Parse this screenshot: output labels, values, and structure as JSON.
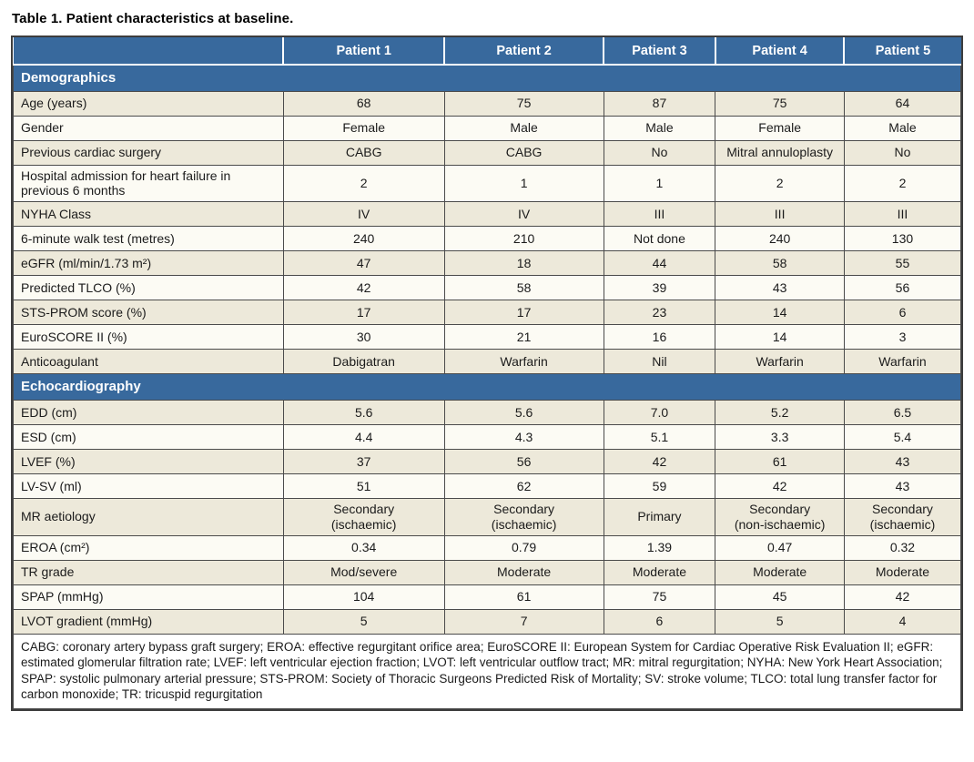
{
  "title": "Table 1. Patient characteristics at baseline.",
  "table": {
    "columns": [
      "",
      "Patient 1",
      "Patient 2",
      "Patient 3",
      "Patient 4",
      "Patient 5"
    ],
    "sections": [
      {
        "header": "Demographics",
        "rows": [
          {
            "label": "Age (years)",
            "values": [
              "68",
              "75",
              "87",
              "75",
              "64"
            ]
          },
          {
            "label": "Gender",
            "values": [
              "Female",
              "Male",
              "Male",
              "Female",
              "Male"
            ]
          },
          {
            "label": "Previous cardiac surgery",
            "values": [
              "CABG",
              "CABG",
              "No",
              "Mitral annuloplasty",
              "No"
            ]
          },
          {
            "label": "Hospital admission for heart failure in previous 6 months",
            "values": [
              "2",
              "1",
              "1",
              "2",
              "2"
            ]
          },
          {
            "label": "NYHA Class",
            "values": [
              "IV",
              "IV",
              "III",
              "III",
              "III"
            ]
          },
          {
            "label": "6-minute walk test (metres)",
            "values": [
              "240",
              "210",
              "Not done",
              "240",
              "130"
            ]
          },
          {
            "label": "eGFR (ml/min/1.73 m²)",
            "values": [
              "47",
              "18",
              "44",
              "58",
              "55"
            ]
          },
          {
            "label": "Predicted TLCO (%)",
            "values": [
              "42",
              "58",
              "39",
              "43",
              "56"
            ]
          },
          {
            "label": "STS-PROM score (%)",
            "values": [
              "17",
              "17",
              "23",
              "14",
              "6"
            ]
          },
          {
            "label": "EuroSCORE II (%)",
            "values": [
              "30",
              "21",
              "16",
              "14",
              "3"
            ]
          },
          {
            "label": "Anticoagulant",
            "values": [
              "Dabigatran",
              "Warfarin",
              "Nil",
              "Warfarin",
              "Warfarin"
            ]
          }
        ]
      },
      {
        "header": "Echocardiography",
        "rows": [
          {
            "label": "EDD (cm)",
            "values": [
              "5.6",
              "5.6",
              "7.0",
              "5.2",
              "6.5"
            ]
          },
          {
            "label": "ESD (cm)",
            "values": [
              "4.4",
              "4.3",
              "5.1",
              "3.3",
              "5.4"
            ]
          },
          {
            "label": "LVEF (%)",
            "values": [
              "37",
              "56",
              "42",
              "61",
              "43"
            ]
          },
          {
            "label": "LV-SV (ml)",
            "values": [
              "51",
              "62",
              "59",
              "42",
              "43"
            ]
          },
          {
            "label": "MR aetiology",
            "values": [
              "Secondary\n(ischaemic)",
              "Secondary\n(ischaemic)",
              "Primary",
              "Secondary\n(non-ischaemic)",
              "Secondary\n(ischaemic)"
            ]
          },
          {
            "label": "EROA (cm²)",
            "values": [
              "0.34",
              "0.79",
              "1.39",
              "0.47",
              "0.32"
            ]
          },
          {
            "label": "TR grade",
            "values": [
              "Mod/severe",
              "Moderate",
              "Moderate",
              "Moderate",
              "Moderate"
            ]
          },
          {
            "label": "SPAP (mmHg)",
            "values": [
              "104",
              "61",
              "75",
              "45",
              "42"
            ]
          },
          {
            "label": "LVOT gradient (mmHg)",
            "values": [
              "5",
              "7",
              "6",
              "5",
              "4"
            ]
          }
        ]
      }
    ],
    "footnote": "CABG: coronary artery bypass graft surgery; EROA: effective regurgitant orifice area; EuroSCORE II: European System for Cardiac Operative Risk Evaluation II; eGFR: estimated glomerular filtration rate; LVEF: left ventricular ejection fraction; LVOT: left ventricular outflow tract; MR: mitral regurgitation; NYHA: New York Heart Association; SPAP: systolic pulmonary arterial pressure; STS-PROM: Society of Thoracic Surgeons Predicted Risk of Mortality; SV: stroke volume; TLCO: total lung transfer factor for carbon monoxide; TR: tricuspid regurgitation"
  },
  "colors": {
    "header_blue": "#38699D",
    "row_beige": "#EDE9DA",
    "row_white": "#FCFBF4",
    "border_dark": "#4B4B4B",
    "header_separator": "#FFFFFF",
    "text": "#1B1B1B"
  }
}
